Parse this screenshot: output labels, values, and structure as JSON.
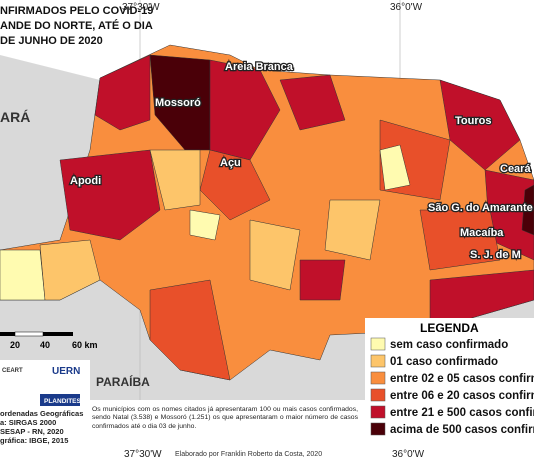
{
  "title_lines": [
    "NFIRMADOS PELO COVID-19",
    "ANDE DO NORTE, ATÉ O DIA",
    "DE JUNHO DE 2020"
  ],
  "coordinates": {
    "top": [
      "37°30'W",
      "36°0'W"
    ],
    "bottom": [
      "37°30'W",
      "36°0'W"
    ]
  },
  "neighbors": [
    "ARÁ",
    "PARAÍBA"
  ],
  "cities": [
    "Areia Branca",
    "Mossoró",
    "Touros",
    "Açu",
    "Apodi",
    "Ceará",
    "São G. do Amarante",
    "Macaíba",
    "S. J. de M"
  ],
  "scale": [
    "20",
    "40",
    "60 km"
  ],
  "legend": {
    "title": "LEGENDA",
    "items": [
      {
        "label": "sem caso confirmado",
        "color": "#fffbb0"
      },
      {
        "label": "01 caso confirmado",
        "color": "#fdc56a"
      },
      {
        "label": "entre 02 e 05 casos confirm",
        "color": "#f98e3e"
      },
      {
        "label": "entre 06 e 20 casos confirm",
        "color": "#e8502a"
      },
      {
        "label": "entre 21 e 500 casos confirm",
        "color": "#c0102a"
      },
      {
        "label": "acima de 500 casos confirm",
        "color": "#4a0008"
      }
    ]
  },
  "credits": [
    "ordenadas Geográficas",
    "a: SIRGAS 2000",
    "SESAP - RN, 2020",
    "gráfica: IBGE, 2015"
  ],
  "logos": [
    "CEART",
    "UERN",
    "PLANDITES"
  ],
  "note": "Os municípios com os nomes citados já apresentaram 100 ou mais casos confirmados, sendo Natal (3.538) e Mossoró (1.251) os que apresentaram o maior número de casos confirmados até o dia 03 de junho.",
  "author": "Elaborado por Franklin Roberto da Costa, 2020"
}
